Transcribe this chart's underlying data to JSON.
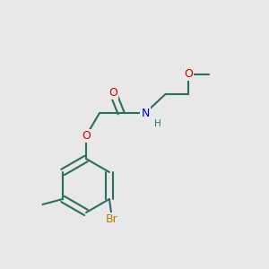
{
  "bg_color": "#e8e8e8",
  "bond_color": "#2d6e5e",
  "bond_lw": 1.5,
  "atom_colors": {
    "O": "#cc0000",
    "N": "#0000cc",
    "Br": "#b87800",
    "C": "#2d6e5e",
    "H": "#2d6e5e"
  },
  "font_size": 9,
  "font_size_small": 7.5
}
